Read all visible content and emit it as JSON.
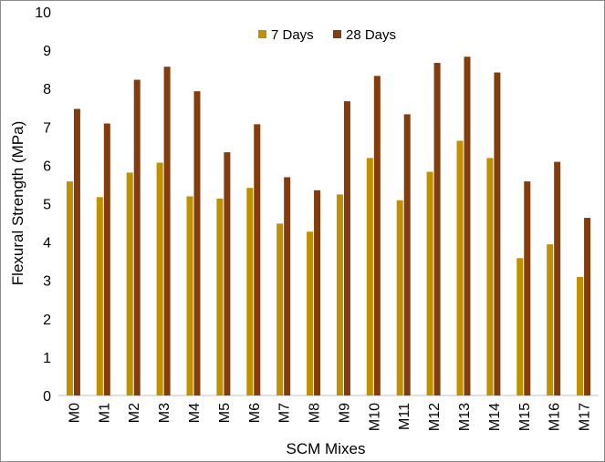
{
  "chart_data": {
    "type": "bar",
    "title": "",
    "xlabel": "SCM Mixes",
    "ylabel": "Flexural Strength (MPa)",
    "ylim": [
      0,
      10
    ],
    "yticks": [
      0,
      1,
      2,
      3,
      4,
      5,
      6,
      7,
      8,
      9,
      10
    ],
    "grid": false,
    "legend_position": "top",
    "categories": [
      "M0",
      "M1",
      "M2",
      "M3",
      "M4",
      "M5",
      "M6",
      "M7",
      "M8",
      "M9",
      "M10",
      "M11",
      "M12",
      "M13",
      "M14",
      "M15",
      "M16",
      "M17"
    ],
    "series": [
      {
        "name": "7 Days",
        "color": "#bf9000",
        "values": [
          5.58,
          5.17,
          5.81,
          6.07,
          5.19,
          5.13,
          5.41,
          4.48,
          4.27,
          5.24,
          6.19,
          5.09,
          5.83,
          6.64,
          6.19,
          3.58,
          3.94,
          3.09
        ]
      },
      {
        "name": "28 Days",
        "color": "#843c0c",
        "values": [
          7.47,
          7.09,
          8.23,
          8.57,
          7.93,
          6.34,
          7.07,
          5.69,
          5.35,
          7.67,
          8.33,
          7.33,
          8.67,
          8.83,
          8.42,
          5.58,
          6.09,
          4.63
        ]
      }
    ]
  }
}
